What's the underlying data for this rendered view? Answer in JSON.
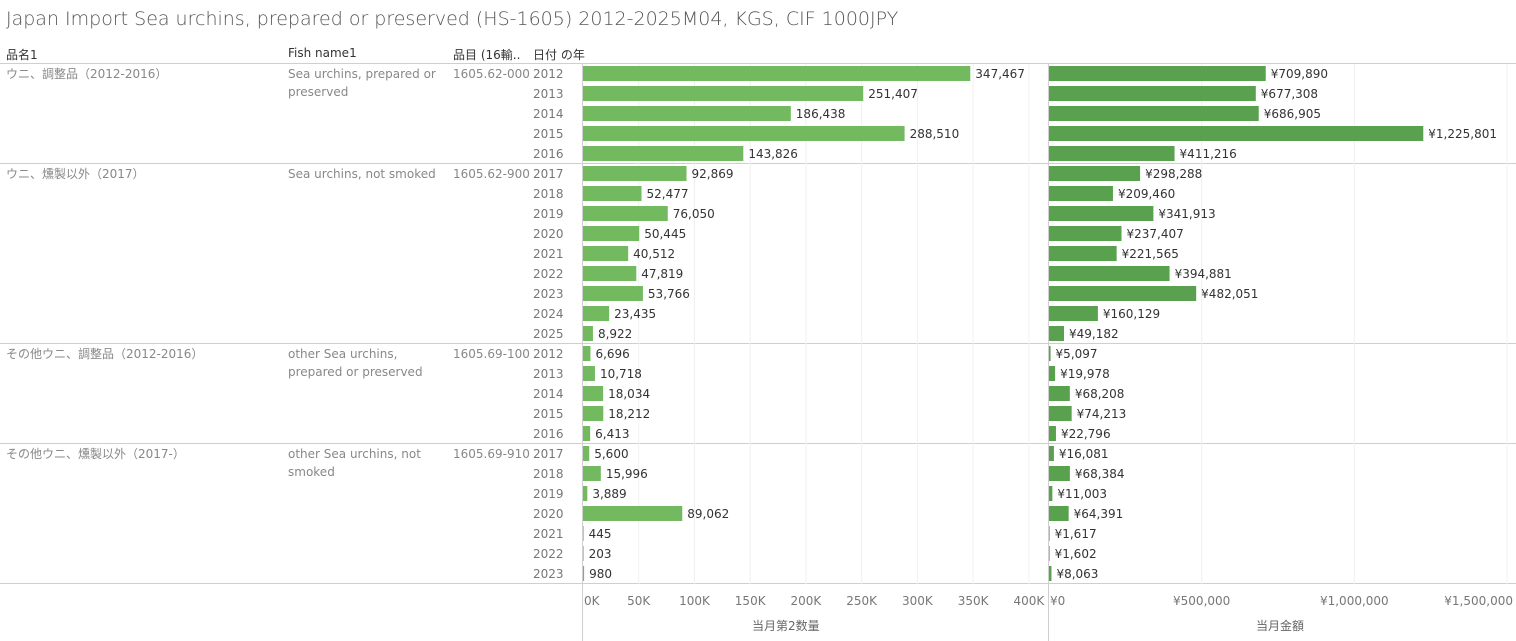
{
  "title": "Japan Import Sea urchins, prepared or preserved (HS-1605) 2012-2025M04, KGS, CIF 1000JPY",
  "headers": {
    "name": "品名1",
    "fish": "Fish name1",
    "code": "品目 (16輸..",
    "year": "日付 の年"
  },
  "colors": {
    "qty_bar": "#73b960",
    "amt_bar": "#59a14f"
  },
  "groups": [
    {
      "name": "ウニ、調整品（2012-2016）",
      "fish": "Sea urchins, prepared or preserved",
      "code": "1605.62-000",
      "start": 0,
      "count": 5
    },
    {
      "name": "ウニ、燻製以外（2017）",
      "fish": "Sea urchins, not smoked",
      "code": "1605.62-900",
      "start": 5,
      "count": 9
    },
    {
      "name": "その他ウニ、調整品（2012-2016）",
      "fish": "other Sea urchins, prepared or preserved",
      "code": "1605.69-100",
      "start": 14,
      "count": 5
    },
    {
      "name": "その他ウニ、燻製以外（2017-）",
      "fish": "other Sea urchins, not smoked",
      "code": "1605.69-910",
      "start": 19,
      "count": 7
    }
  ],
  "chart_data": [
    {
      "type": "bar",
      "orientation": "horizontal",
      "xlabel": "当月第2数量",
      "xlim": [
        0,
        410000
      ],
      "ticks": [
        0,
        50000,
        100000,
        150000,
        200000,
        250000,
        300000,
        350000,
        400000
      ],
      "tick_labels": [
        "0K",
        "50K",
        "100K",
        "150K",
        "200K",
        "250K",
        "300K",
        "350K",
        "400K"
      ],
      "categories": [
        "2012",
        "2013",
        "2014",
        "2015",
        "2016",
        "2017",
        "2018",
        "2019",
        "2020",
        "2021",
        "2022",
        "2023",
        "2024",
        "2025",
        "2012",
        "2013",
        "2014",
        "2015",
        "2016",
        "2017",
        "2018",
        "2019",
        "2020",
        "2021",
        "2022",
        "2023"
      ],
      "values": [
        347467,
        251407,
        186438,
        288510,
        143826,
        92869,
        52477,
        76050,
        50445,
        40512,
        47819,
        53766,
        23435,
        8922,
        6696,
        10718,
        18034,
        18212,
        6413,
        5600,
        15996,
        3889,
        89062,
        445,
        203,
        980
      ],
      "labels": [
        "347,467",
        "251,407",
        "186,438",
        "288,510",
        "143,826",
        "92,869",
        "52,477",
        "76,050",
        "50,445",
        "40,512",
        "47,819",
        "53,766",
        "23,435",
        "8,922",
        "6,696",
        "10,718",
        "18,034",
        "18,212",
        "6,413",
        "5,600",
        "15,996",
        "3,889",
        "89,062",
        "445",
        "203",
        "980"
      ]
    },
    {
      "type": "bar",
      "orientation": "horizontal",
      "xlabel": "当月金額",
      "xlim": [
        0,
        1500000
      ],
      "ticks": [
        0,
        500000,
        1000000,
        1500000
      ],
      "tick_labels": [
        "¥0",
        "¥500,000",
        "¥1,000,000",
        "¥1,500,000"
      ],
      "categories": [
        "2012",
        "2013",
        "2014",
        "2015",
        "2016",
        "2017",
        "2018",
        "2019",
        "2020",
        "2021",
        "2022",
        "2023",
        "2024",
        "2025",
        "2012",
        "2013",
        "2014",
        "2015",
        "2016",
        "2017",
        "2018",
        "2019",
        "2020",
        "2021",
        "2022",
        "2023"
      ],
      "values": [
        709890,
        677308,
        686905,
        1225801,
        411216,
        298288,
        209460,
        341913,
        237407,
        221565,
        394881,
        482051,
        160129,
        49182,
        5097,
        19978,
        68208,
        74213,
        22796,
        16081,
        68384,
        11003,
        64391,
        1617,
        1602,
        8063
      ],
      "labels": [
        "¥709,890",
        "¥677,308",
        "¥686,905",
        "¥1,225,801",
        "¥411,216",
        "¥298,288",
        "¥209,460",
        "¥341,913",
        "¥237,407",
        "¥221,565",
        "¥394,881",
        "¥482,051",
        "¥160,129",
        "¥49,182",
        "¥5,097",
        "¥19,978",
        "¥68,208",
        "¥74,213",
        "¥22,796",
        "¥16,081",
        "¥68,384",
        "¥11,003",
        "¥64,391",
        "¥1,617",
        "¥1,602",
        "¥8,063"
      ]
    }
  ]
}
